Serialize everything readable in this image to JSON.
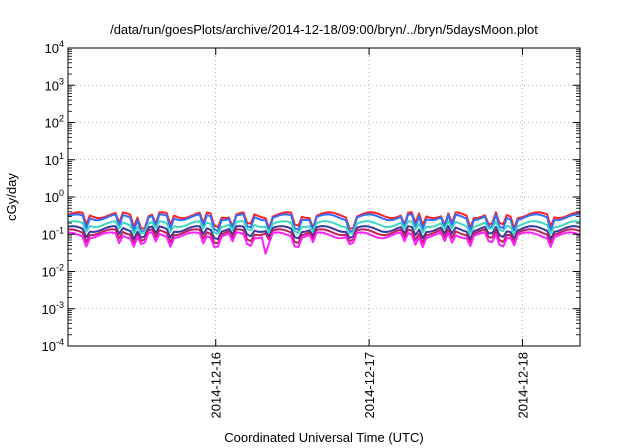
{
  "chart_data": {
    "type": "line",
    "title": "/data/run/goesPlots/archive/2014-12-18/09:00/bryn/../bryn/5daysMoon.plot",
    "xlabel": "Coordinated Universal Time (UTC)",
    "ylabel": "cGy/day",
    "yscale": "log",
    "ylim": [
      0.0001,
      10000
    ],
    "xlim": [
      "2014-12-15T00:53",
      "2014-12-18T09:00"
    ],
    "grid": true,
    "y_ticks": [
      {
        "base": "10",
        "exp": "-4"
      },
      {
        "base": "10",
        "exp": "-3"
      },
      {
        "base": "10",
        "exp": "-2"
      },
      {
        "base": "10",
        "exp": "-1"
      },
      {
        "base": "10",
        "exp": "0"
      },
      {
        "base": "10",
        "exp": "1"
      },
      {
        "base": "10",
        "exp": "2"
      },
      {
        "base": "10",
        "exp": "3"
      },
      {
        "base": "10",
        "exp": "4"
      }
    ],
    "x_ticks": [
      "2014-12-16",
      "2014-12-17",
      "2014-12-18"
    ],
    "series": [
      {
        "color": "#ff2020",
        "base": 0.33,
        "amp": 0.3
      },
      {
        "color": "#3070ff",
        "base": 0.29,
        "amp": 0.32
      },
      {
        "color": "#40d8c0",
        "base": 0.19,
        "amp": 0.22
      },
      {
        "color": "#3a3a9a",
        "base": 0.14,
        "amp": 0.22
      },
      {
        "color": "#c02060",
        "base": 0.115,
        "amp": 0.24
      },
      {
        "color": "#ff20ff",
        "base": 0.095,
        "amp": 0.26,
        "spike": {
          "x": "2014-12-16T07:45",
          "y": 0.03
        }
      }
    ]
  }
}
